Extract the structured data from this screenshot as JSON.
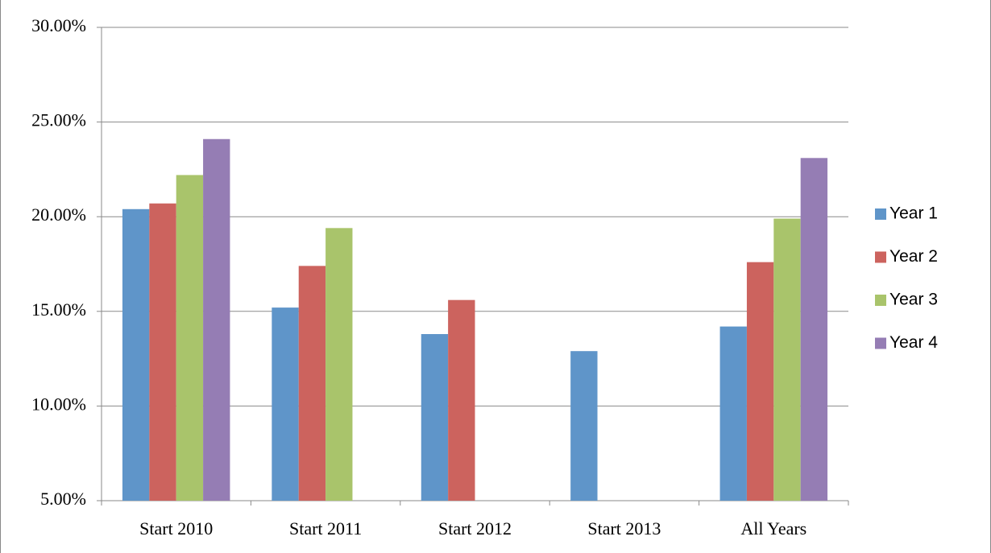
{
  "chart_data": {
    "type": "bar",
    "categories": [
      "Start 2010",
      "Start 2011",
      "Start 2012",
      "Start 2013",
      "All Years"
    ],
    "series": [
      {
        "name": "Year 1",
        "color": "#5f95c9",
        "values": [
          20.4,
          15.2,
          13.8,
          12.9,
          14.2
        ]
      },
      {
        "name": "Year 2",
        "color": "#cc635e",
        "values": [
          20.7,
          17.4,
          15.6,
          null,
          17.6
        ]
      },
      {
        "name": "Year 3",
        "color": "#a9c46b",
        "values": [
          22.2,
          19.4,
          null,
          null,
          19.9
        ]
      },
      {
        "name": "Year 4",
        "color": "#957db4",
        "values": [
          24.1,
          null,
          null,
          null,
          23.1
        ]
      }
    ],
    "ylim": [
      5,
      30
    ],
    "yticks": [
      {
        "value": 5,
        "label": "5.00%"
      },
      {
        "value": 10,
        "label": "10.00%"
      },
      {
        "value": 15,
        "label": "15.00%"
      },
      {
        "value": 20,
        "label": "20.00%"
      },
      {
        "value": 25,
        "label": "25.00%"
      },
      {
        "value": 30,
        "label": "30.00%"
      }
    ],
    "grid": true,
    "legend": "right"
  }
}
